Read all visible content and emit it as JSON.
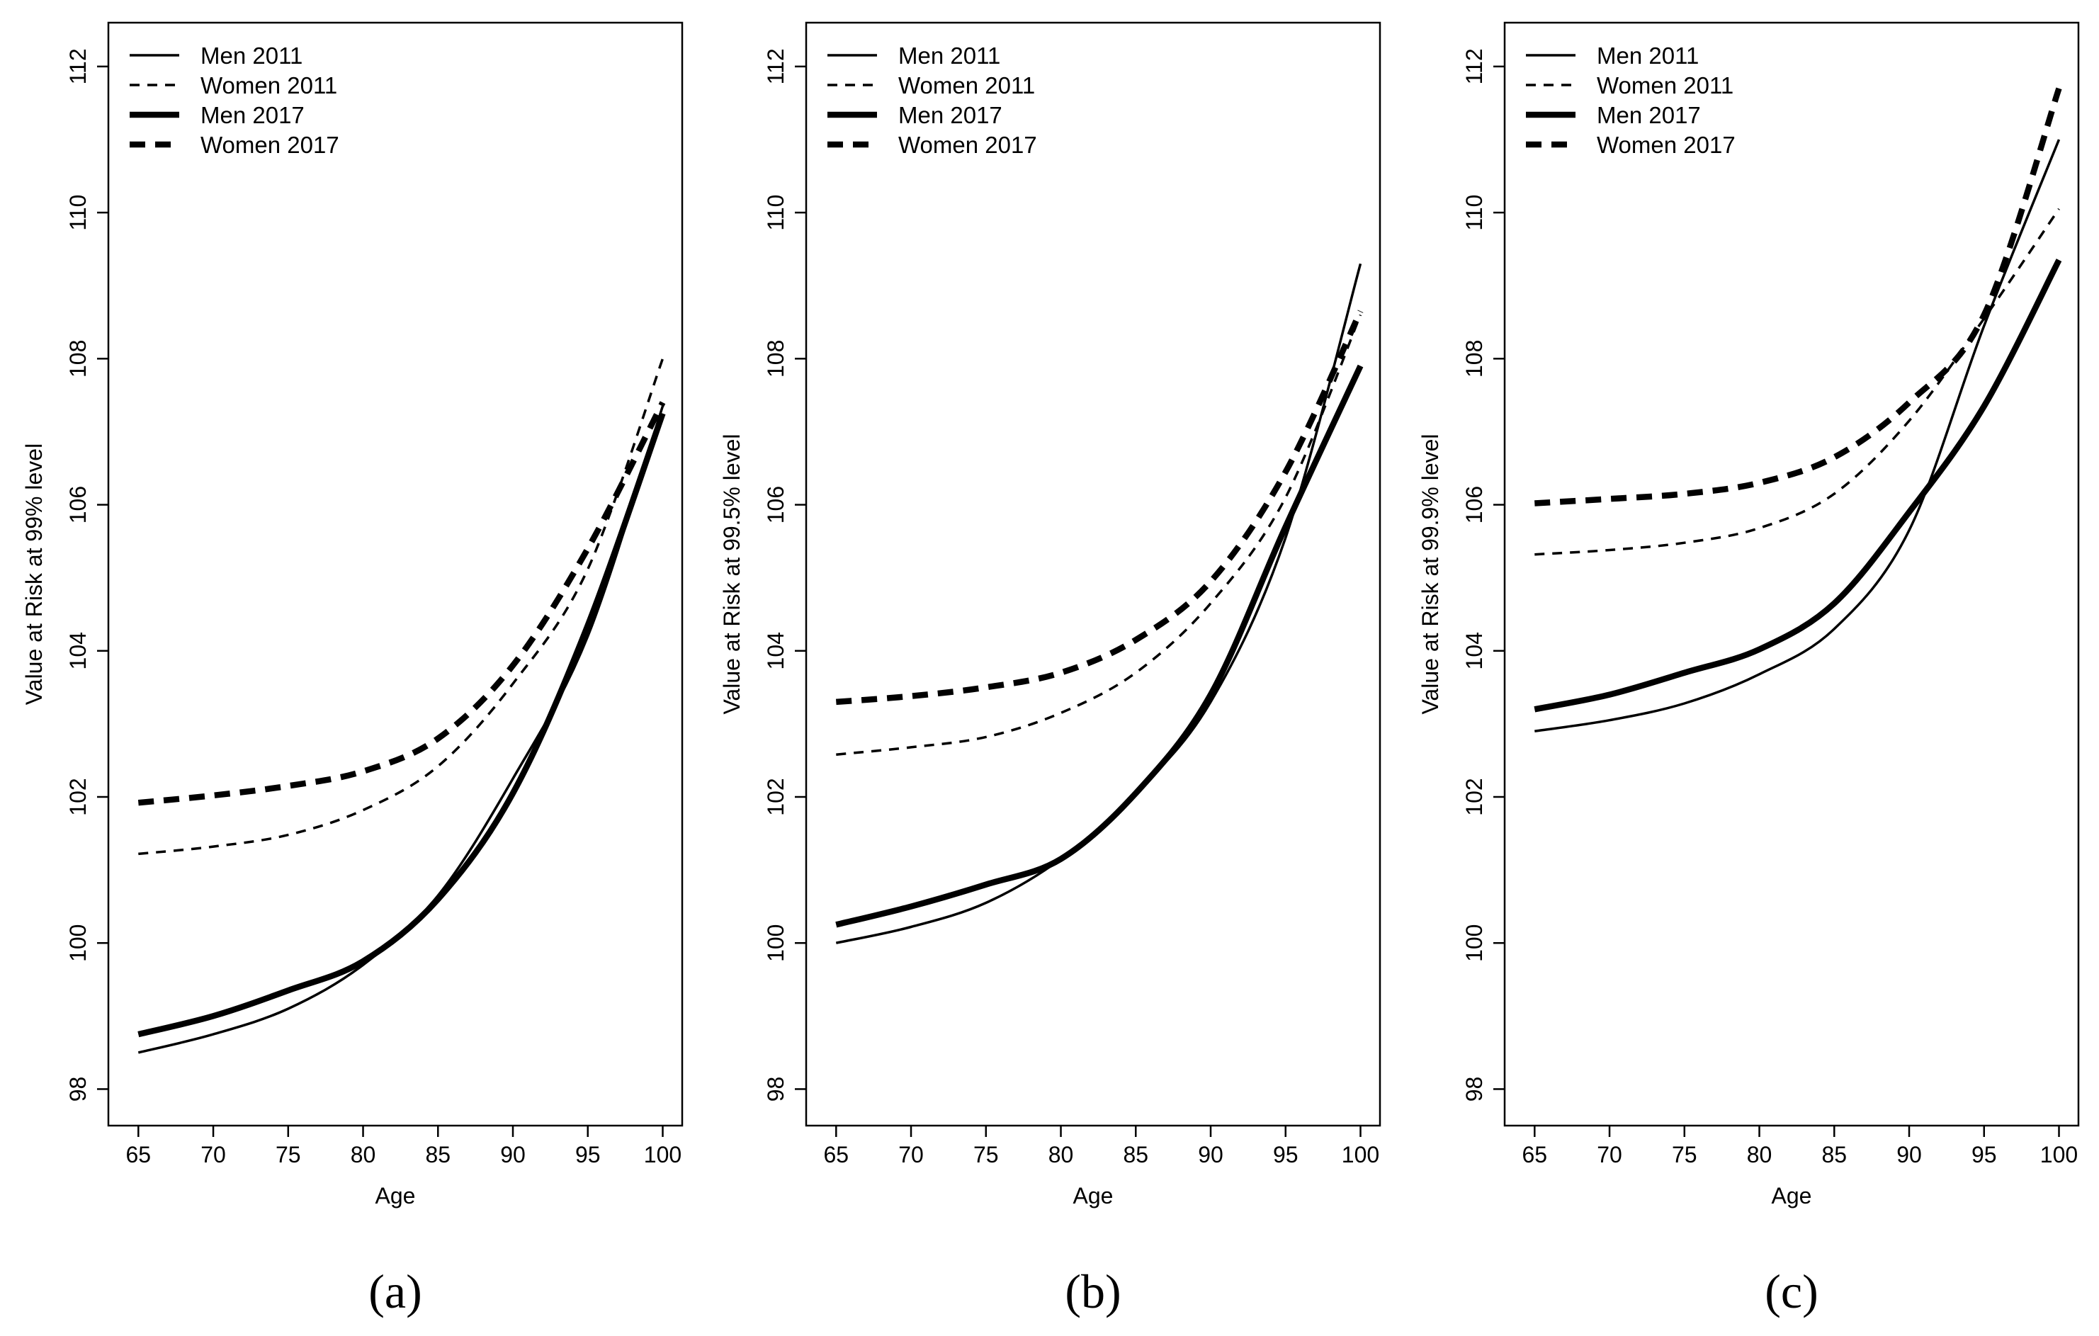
{
  "figure": {
    "panels": [
      {
        "letter": "a",
        "label": "(a)"
      },
      {
        "letter": "b",
        "label": "(b)"
      },
      {
        "letter": "c",
        "label": "(c)"
      }
    ]
  },
  "legend": [
    {
      "name": "Men 2011",
      "style": "thin-solid"
    },
    {
      "name": "Women 2011",
      "style": "thin-dashed"
    },
    {
      "name": "Men 2017",
      "style": "thick-solid"
    },
    {
      "name": "Women 2017",
      "style": "thick-dashed"
    }
  ],
  "chart_data": [
    {
      "type": "line",
      "panel_label": "(a)",
      "xlabel": "Age",
      "ylabel": "Value at Risk at 99% level",
      "xlim": [
        63,
        101.3
      ],
      "ylim": [
        97.5,
        112.6
      ],
      "xticks": [
        65,
        70,
        75,
        80,
        85,
        90,
        95,
        100
      ],
      "yticks": [
        98,
        100,
        102,
        104,
        106,
        108,
        110,
        112
      ],
      "legend_position": "top-left",
      "x": [
        65,
        70,
        75,
        80,
        85,
        90,
        95,
        100
      ],
      "series": [
        {
          "name": "Men 2011",
          "values": [
            98.5,
            98.75,
            99.1,
            99.7,
            100.65,
            102.25,
            104.2,
            107.35
          ]
        },
        {
          "name": "Women 2011",
          "values": [
            101.22,
            101.32,
            101.48,
            101.82,
            102.42,
            103.55,
            105.12,
            108.0
          ]
        },
        {
          "name": "Men 2017",
          "values": [
            98.75,
            99.0,
            99.35,
            99.75,
            100.6,
            102.05,
            104.35,
            107.25
          ]
        },
        {
          "name": "Women 2017",
          "values": [
            101.92,
            102.02,
            102.15,
            102.35,
            102.8,
            103.8,
            105.4,
            107.4
          ]
        }
      ]
    },
    {
      "type": "line",
      "panel_label": "(b)",
      "xlabel": "Age",
      "ylabel": "Value at Risk at 99.5% level",
      "xlim": [
        63,
        101.3
      ],
      "ylim": [
        97.5,
        112.6
      ],
      "xticks": [
        65,
        70,
        75,
        80,
        85,
        90,
        95,
        100
      ],
      "yticks": [
        98,
        100,
        102,
        104,
        106,
        108,
        110,
        112
      ],
      "legend_position": "top-left",
      "x": [
        65,
        70,
        75,
        80,
        85,
        90,
        95,
        100
      ],
      "series": [
        {
          "name": "Men 2011",
          "values": [
            100.0,
            100.22,
            100.55,
            101.15,
            102.05,
            103.3,
            105.55,
            109.3
          ]
        },
        {
          "name": "Women 2011",
          "values": [
            102.58,
            102.68,
            102.82,
            103.15,
            103.7,
            104.65,
            106.1,
            108.6
          ]
        },
        {
          "name": "Men 2017",
          "values": [
            100.25,
            100.5,
            100.8,
            101.15,
            102.05,
            103.4,
            105.7,
            107.9
          ]
        },
        {
          "name": "Women 2017",
          "values": [
            103.3,
            103.38,
            103.5,
            103.7,
            104.15,
            104.95,
            106.45,
            108.65
          ]
        }
      ]
    },
    {
      "type": "line",
      "panel_label": "(c)",
      "xlabel": "Age",
      "ylabel": "Value at Risk at 99.9% level",
      "xlim": [
        63,
        101.3
      ],
      "ylim": [
        97.5,
        112.6
      ],
      "xticks": [
        65,
        70,
        75,
        80,
        85,
        90,
        95,
        100
      ],
      "yticks": [
        98,
        100,
        102,
        104,
        106,
        108,
        110,
        112
      ],
      "legend_position": "top-left",
      "x": [
        65,
        70,
        75,
        80,
        85,
        90,
        95,
        100
      ],
      "series": [
        {
          "name": "Men 2011",
          "values": [
            102.9,
            103.05,
            103.28,
            103.68,
            104.3,
            105.65,
            108.45,
            111.0
          ]
        },
        {
          "name": "Women 2011",
          "values": [
            105.32,
            105.38,
            105.48,
            105.68,
            106.15,
            107.15,
            108.55,
            110.05
          ]
        },
        {
          "name": "Men 2017",
          "values": [
            103.2,
            103.4,
            103.7,
            104.02,
            104.65,
            105.9,
            107.35,
            109.35
          ]
        },
        {
          "name": "Women 2017",
          "values": [
            106.02,
            106.08,
            106.15,
            106.3,
            106.65,
            107.4,
            108.6,
            111.7
          ]
        }
      ]
    }
  ]
}
